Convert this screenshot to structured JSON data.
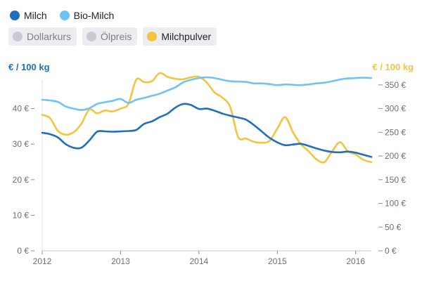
{
  "legend": {
    "items": [
      {
        "label": "Milch",
        "color": "#1f6fbf",
        "active": true,
        "icon": "dot-icon"
      },
      {
        "label": "Bio-Milch",
        "color": "#6ec3f5",
        "active": true,
        "icon": "dot-icon"
      },
      {
        "label": "Dollarkurs",
        "color": "#c9cad3",
        "active": false,
        "icon": "dot-icon"
      },
      {
        "label": "Ölpreis",
        "color": "#c9cad3",
        "active": false,
        "icon": "dot-icon"
      },
      {
        "label": "Milchpulver",
        "color": "#f2c53d",
        "active": true,
        "icon": "dot-icon"
      }
    ]
  },
  "chart_data": {
    "type": "line",
    "y_left": {
      "label": "€ / 100 kg",
      "color": "#1f6fbf",
      "range": [
        0,
        50
      ],
      "ticks": [
        0,
        10,
        20,
        30,
        40
      ],
      "tick_labels": [
        "0 €",
        "10 €",
        "20 €",
        "30 €",
        "40 €"
      ]
    },
    "y_right": {
      "label": "€ / 100 kg",
      "color": "#f2c53d",
      "range": [
        0,
        375
      ],
      "ticks": [
        0,
        50,
        100,
        150,
        200,
        250,
        300,
        350
      ],
      "tick_labels": [
        "0 €",
        "50 €",
        "100 €",
        "150 €",
        "200 €",
        "250 €",
        "300 €",
        "350 €"
      ]
    },
    "x_axis": {
      "range": [
        2012,
        2016.2
      ],
      "ticks": [
        2012,
        2013,
        2014,
        2015,
        2016
      ],
      "tick_labels": [
        "2012",
        "2013",
        "2014",
        "2015",
        "2016"
      ]
    },
    "grid": false,
    "series": [
      {
        "name": "Milch",
        "axis": "left",
        "color": "#1f6fbf",
        "x": [
          2012.0,
          2012.1,
          2012.2,
          2012.3,
          2012.4,
          2012.5,
          2012.6,
          2012.7,
          2012.8,
          2012.9,
          2013.0,
          2013.1,
          2013.2,
          2013.3,
          2013.4,
          2013.5,
          2013.6,
          2013.7,
          2013.8,
          2013.9,
          2014.0,
          2014.1,
          2014.2,
          2014.3,
          2014.4,
          2014.5,
          2014.6,
          2014.7,
          2014.8,
          2014.9,
          2015.0,
          2015.1,
          2015.2,
          2015.3,
          2015.4,
          2015.5,
          2015.6,
          2015.7,
          2015.8,
          2015.9,
          2016.0,
          2016.1,
          2016.2
        ],
        "values": [
          33.2,
          32.8,
          31.9,
          30.0,
          29.0,
          29.0,
          31.0,
          33.5,
          33.6,
          33.5,
          33.6,
          33.7,
          34.0,
          35.7,
          36.4,
          37.6,
          38.6,
          40.3,
          41.3,
          41.0,
          39.9,
          40.0,
          39.4,
          38.6,
          38.0,
          37.5,
          36.9,
          35.4,
          33.6,
          31.8,
          30.5,
          29.7,
          29.9,
          30.1,
          29.5,
          28.8,
          28.2,
          27.8,
          27.7,
          27.9,
          27.6,
          27.0,
          26.4
        ]
      },
      {
        "name": "Bio-Milch",
        "axis": "left",
        "color": "#6ec3f5",
        "x": [
          2012.0,
          2012.1,
          2012.2,
          2012.3,
          2012.4,
          2012.5,
          2012.6,
          2012.7,
          2012.8,
          2012.9,
          2013.0,
          2013.1,
          2013.2,
          2013.3,
          2013.4,
          2013.5,
          2013.6,
          2013.7,
          2013.8,
          2013.9,
          2014.0,
          2014.1,
          2014.2,
          2014.3,
          2014.4,
          2014.5,
          2014.6,
          2014.7,
          2014.8,
          2014.9,
          2015.0,
          2015.1,
          2015.2,
          2015.3,
          2015.4,
          2015.5,
          2015.6,
          2015.7,
          2015.8,
          2015.9,
          2016.0,
          2016.1,
          2016.2
        ],
        "values": [
          42.5,
          42.3,
          41.9,
          40.6,
          40.0,
          39.6,
          40.1,
          41.3,
          41.8,
          42.2,
          42.7,
          41.6,
          42.5,
          43.0,
          43.6,
          44.2,
          45.1,
          46.0,
          47.4,
          48.1,
          48.6,
          48.8,
          48.6,
          48.1,
          47.7,
          47.6,
          47.5,
          47.1,
          47.1,
          46.9,
          46.6,
          46.8,
          46.7,
          46.6,
          46.8,
          47.1,
          47.3,
          47.7,
          48.2,
          48.5,
          48.6,
          48.7,
          48.6
        ]
      },
      {
        "name": "Milchpulver",
        "axis": "right",
        "color": "#f2c53d",
        "x": [
          2012.0,
          2012.1,
          2012.2,
          2012.3,
          2012.4,
          2012.5,
          2012.6,
          2012.7,
          2012.8,
          2012.9,
          2013.0,
          2013.1,
          2013.2,
          2013.3,
          2013.4,
          2013.5,
          2013.6,
          2013.7,
          2013.8,
          2013.9,
          2014.0,
          2014.1,
          2014.2,
          2014.3,
          2014.4,
          2014.5,
          2014.6,
          2014.7,
          2014.8,
          2014.9,
          2015.0,
          2015.1,
          2015.2,
          2015.3,
          2015.4,
          2015.5,
          2015.6,
          2015.7,
          2015.8,
          2015.9,
          2016.0,
          2016.1,
          2016.2
        ],
        "values": [
          287,
          280,
          253,
          245,
          250,
          268,
          298,
          290,
          296,
          294,
          300,
          310,
          361,
          356,
          358,
          375,
          367,
          363,
          362,
          366,
          367,
          355,
          334,
          323,
          303,
          240,
          237,
          230,
          228,
          232,
          258,
          282,
          250,
          225,
          210,
          193,
          187,
          210,
          229,
          210,
          203,
          192,
          187
        ]
      }
    ]
  }
}
